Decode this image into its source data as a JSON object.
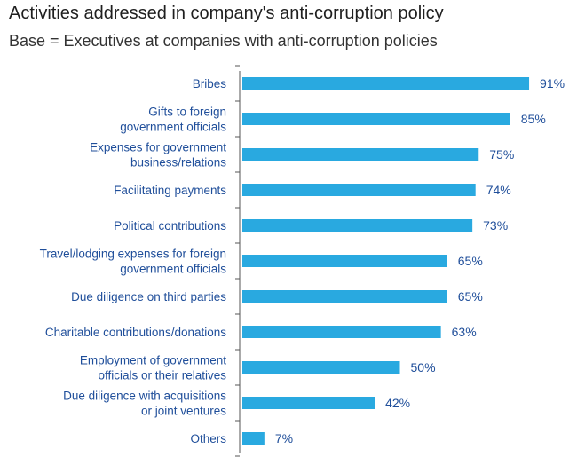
{
  "chart_data": {
    "type": "bar",
    "orientation": "horizontal",
    "title": "Activities addressed in company's anti-corruption policy",
    "subtitle": "Base = Executives at companies with anti-corruption policies",
    "categories": [
      [
        "Bribes"
      ],
      [
        "Gifts to foreign",
        "government officials"
      ],
      [
        "Expenses for government",
        "business/relations"
      ],
      [
        "Facilitating payments"
      ],
      [
        "Political contributions"
      ],
      [
        "Travel/lodging expenses for foreign",
        "government officials"
      ],
      [
        "Due diligence on third parties"
      ],
      [
        "Charitable contributions/donations"
      ],
      [
        "Employment of government",
        "officials or their relatives"
      ],
      [
        "Due diligence with acquisitions",
        "or joint ventures"
      ],
      [
        "Others"
      ]
    ],
    "values": [
      91,
      85,
      75,
      74,
      73,
      65,
      65,
      63,
      50,
      42,
      7
    ],
    "value_labels": [
      "91%",
      "85%",
      "75%",
      "74%",
      "73%",
      "65%",
      "65%",
      "63%",
      "50%",
      "42%",
      "7%"
    ],
    "xlim": [
      0,
      100
    ],
    "grid": false,
    "legend": "none",
    "colors": {
      "bar": "#29a9e0",
      "text": "#1f4e9a",
      "axis": "#555555"
    }
  }
}
